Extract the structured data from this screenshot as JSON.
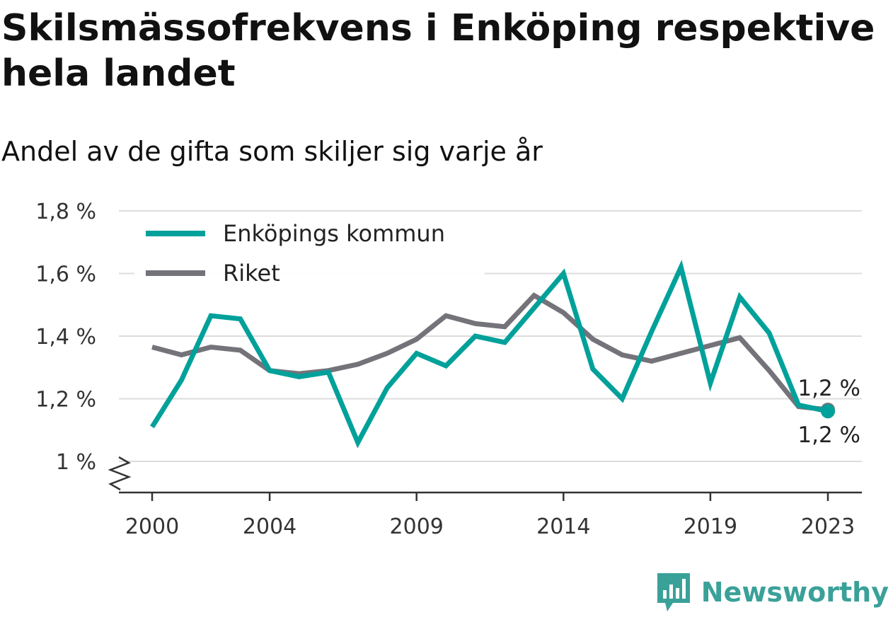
{
  "title": "Skilsmässofrekvens i Enköping respektive hela landet",
  "subtitle": "Andel av de gifta som skiljer sig varje år",
  "brand": {
    "name": "Newsworthy",
    "icon": "newsworthy-logo-icon",
    "color": "#3aa199"
  },
  "chart_data": {
    "type": "line",
    "x": [
      2000,
      2001,
      2002,
      2003,
      2004,
      2005,
      2006,
      2007,
      2008,
      2009,
      2010,
      2011,
      2012,
      2013,
      2014,
      2015,
      2016,
      2017,
      2018,
      2019,
      2020,
      2021,
      2022,
      2023
    ],
    "series": [
      {
        "name": "Enköpings kommun",
        "color": "#00a19a",
        "values": [
          1.11,
          1.26,
          1.465,
          1.455,
          1.29,
          1.27,
          1.285,
          1.06,
          1.235,
          1.345,
          1.305,
          1.4,
          1.38,
          1.49,
          1.6,
          1.295,
          1.2,
          1.415,
          1.62,
          1.25,
          1.525,
          1.41,
          1.18,
          1.16
        ]
      },
      {
        "name": "Riket",
        "color": "#74737a",
        "values": [
          1.365,
          1.34,
          1.365,
          1.355,
          1.29,
          1.28,
          1.29,
          1.31,
          1.345,
          1.39,
          1.465,
          1.44,
          1.43,
          1.53,
          1.475,
          1.39,
          1.34,
          1.32,
          1.345,
          1.37,
          1.395,
          1.29,
          1.175,
          1.165
        ]
      }
    ],
    "x_ticks": [
      "2000",
      "2004",
      "2009",
      "2014",
      "2019",
      "2023"
    ],
    "y_ticks": [
      {
        "value": 1.0,
        "label": "1 %"
      },
      {
        "value": 1.2,
        "label": "1,2 %"
      },
      {
        "value": 1.4,
        "label": "1,4 %"
      },
      {
        "value": 1.6,
        "label": "1,6 %"
      },
      {
        "value": 1.8,
        "label": "1,8 %"
      }
    ],
    "ylim": [
      0.9,
      1.8
    ],
    "y_axis_break": true,
    "grid": true,
    "legend_position": "top-left",
    "end_labels": [
      {
        "series": "Riket",
        "text": "1,2 %",
        "placement": "above"
      },
      {
        "series": "Enköpings kommun",
        "text": "1,2 %",
        "placement": "below"
      }
    ]
  }
}
